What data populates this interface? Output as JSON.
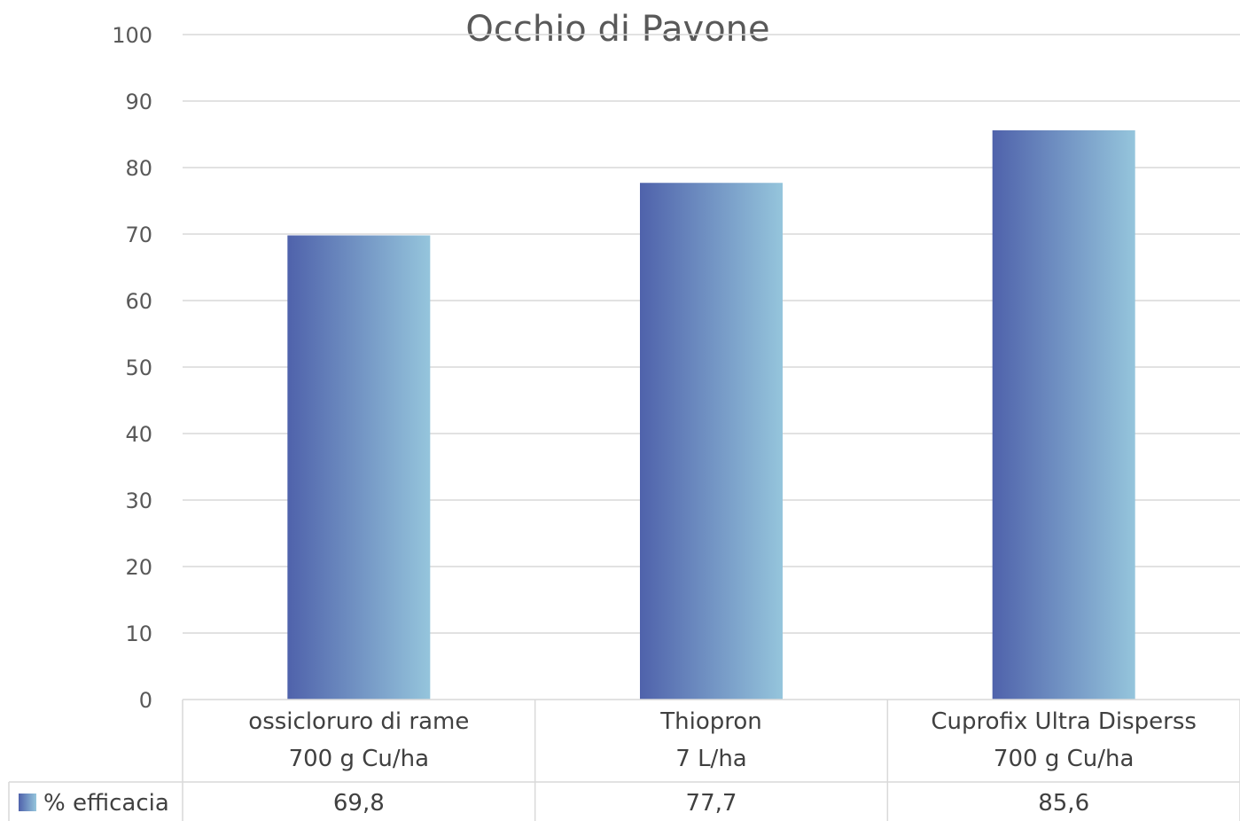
{
  "chart_data": {
    "type": "bar",
    "title": "Occhio di Pavone",
    "categories": [
      [
        "ossicloruro di rame",
        "700 g Cu/ha"
      ],
      [
        "Thiopron",
        "7 L/ha"
      ],
      [
        "Cuprofix Ultra Disperss",
        "700 g Cu/ha"
      ]
    ],
    "series": [
      {
        "name": "% efficacia",
        "values": [
          69.8,
          77.7,
          85.6
        ],
        "labels": [
          "69,8",
          "77,7",
          "85,6"
        ]
      }
    ],
    "yticks": [
      "0",
      "10",
      "20",
      "30",
      "40",
      "50",
      "60",
      "70",
      "80",
      "90",
      "100"
    ],
    "ylim": [
      0,
      100
    ],
    "grid": true,
    "legend": "data-table",
    "colors": {
      "bar_start": "#4f62ab",
      "bar_end": "#95c5dc",
      "grid": "#d9d9d9"
    }
  }
}
